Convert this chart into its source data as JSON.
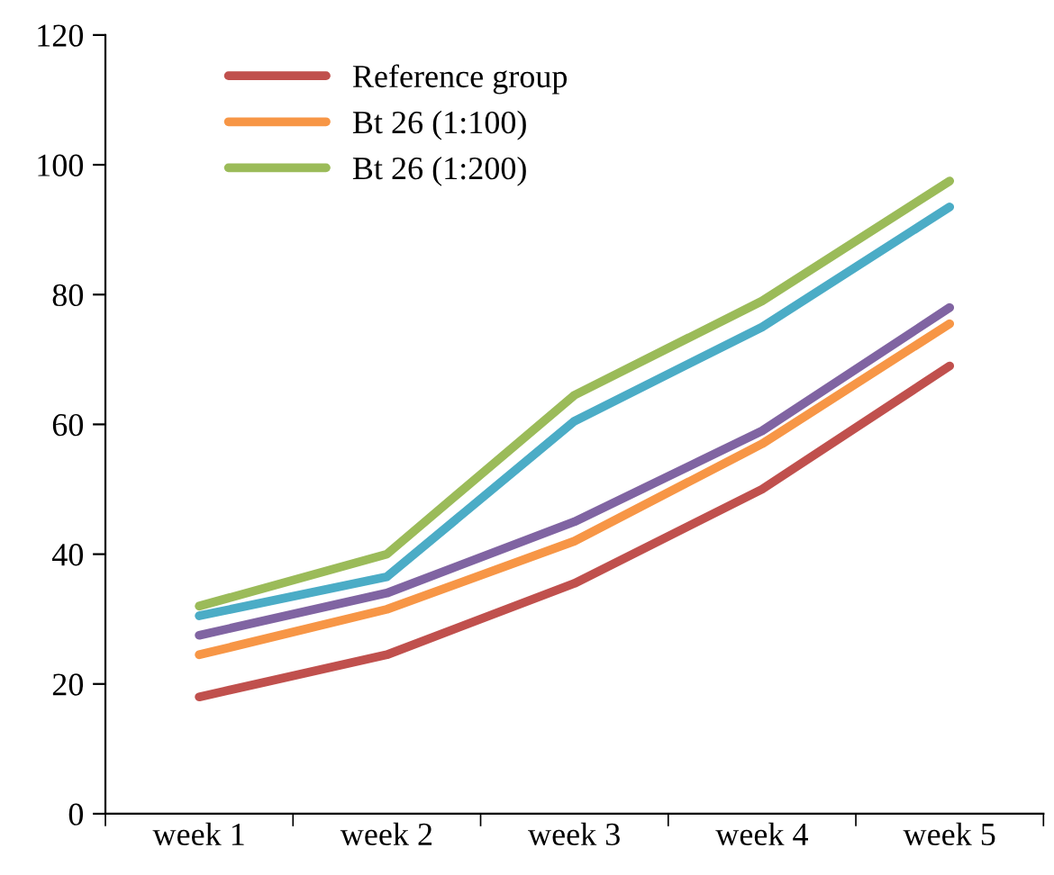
{
  "chart_data": {
    "type": "line",
    "categories": [
      "week 1",
      "week 2",
      "week 3",
      "week 4",
      "week 5"
    ],
    "series": [
      {
        "name": "Reference group",
        "color": "#c0504d",
        "values": [
          18,
          24.5,
          35.5,
          50,
          69
        ]
      },
      {
        "name": "Bt 26 (1:100)",
        "color": "#f79646",
        "values": [
          24.5,
          31.5,
          42,
          57,
          75.5
        ]
      },
      {
        "name": "Bt 26 (1:200)",
        "color": "#9bbb59",
        "values": [
          32,
          40,
          64.5,
          79,
          97.5
        ]
      },
      {
        "color": "#8064a2",
        "values": [
          27.5,
          34,
          45,
          59,
          78
        ]
      },
      {
        "color": "#4bacc6",
        "values": [
          30.5,
          36.5,
          60.5,
          75,
          93.5
        ]
      }
    ],
    "ylim": [
      0,
      120
    ],
    "yticks": [
      0,
      20,
      40,
      60,
      80,
      100,
      120
    ],
    "grid": false,
    "legend": "top left",
    "marker": "none",
    "line_style": "solid"
  }
}
